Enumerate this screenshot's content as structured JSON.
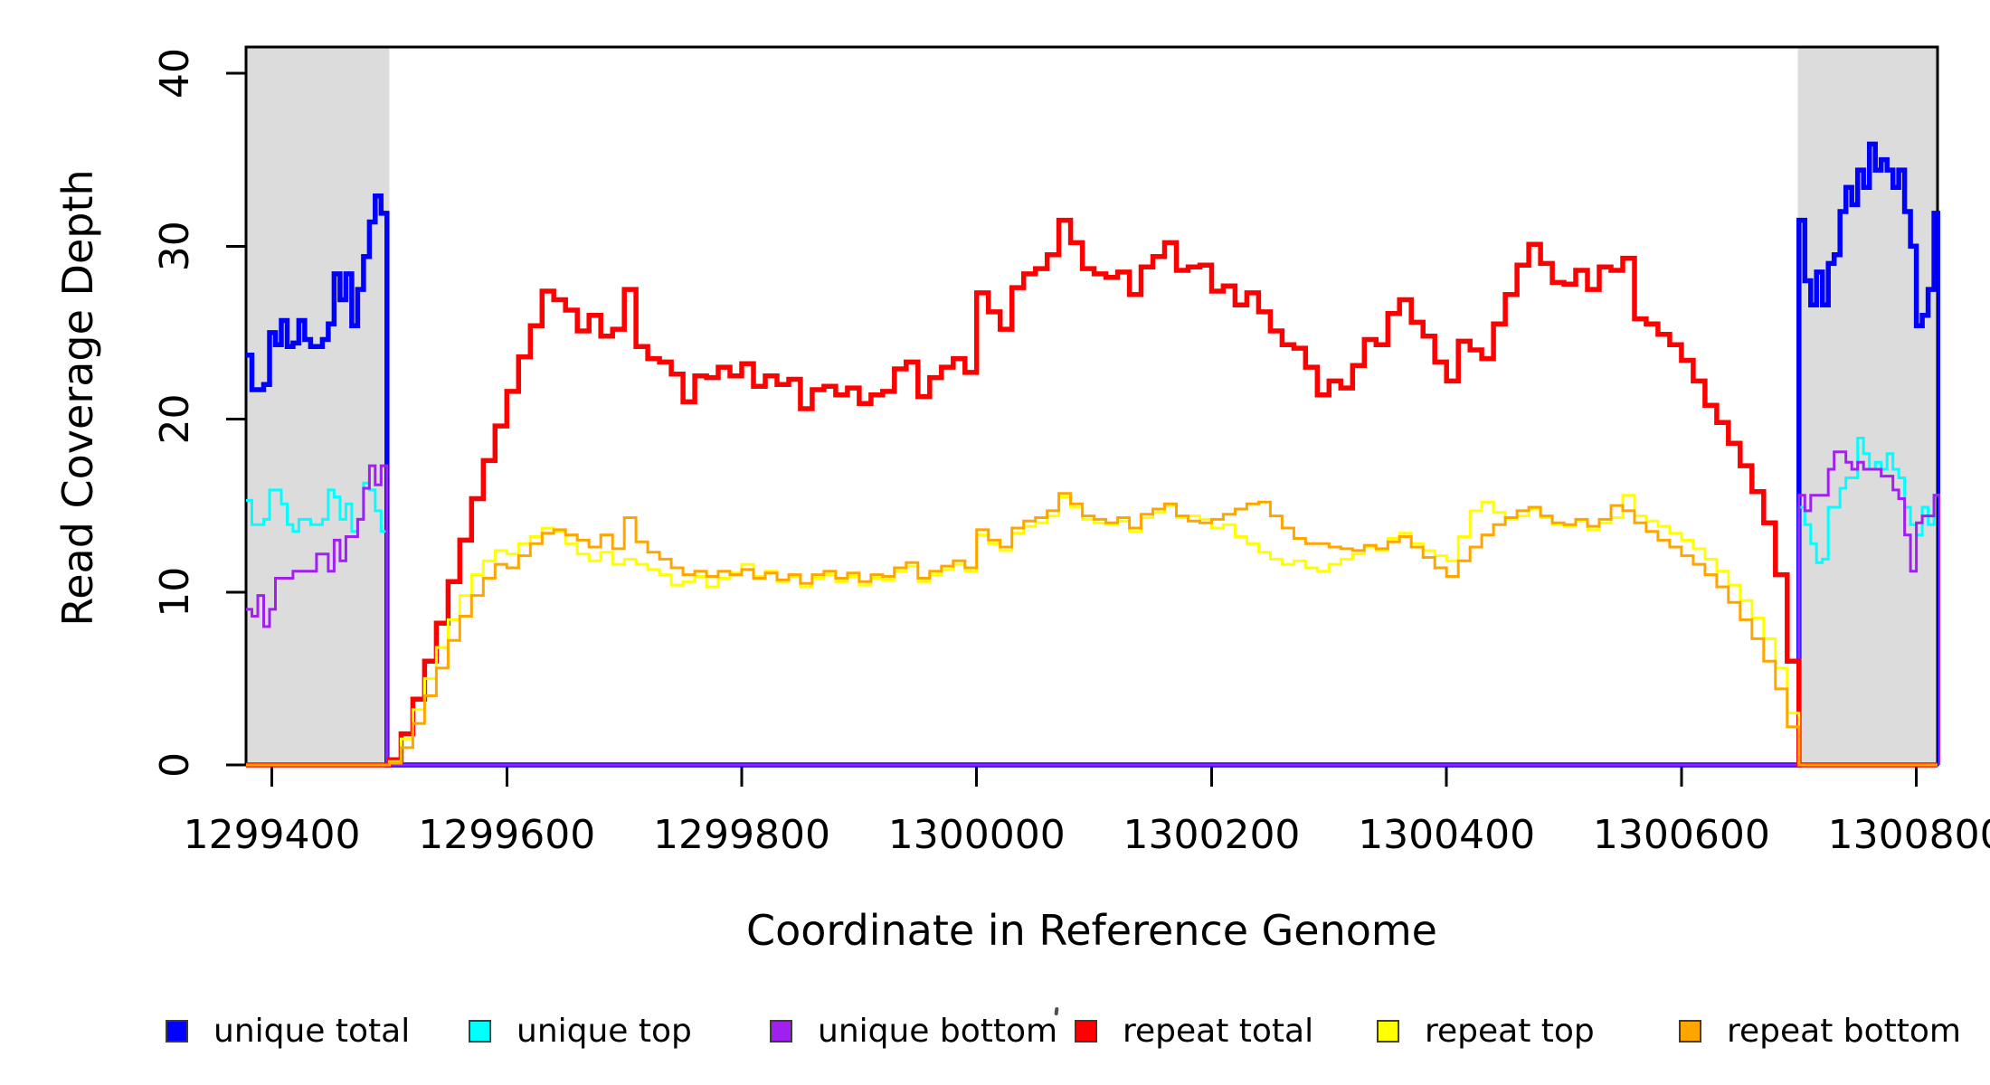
{
  "figure": {
    "background": "#ffffff"
  },
  "chart_data": {
    "type": "line",
    "subtype": "step-coverage",
    "title": "",
    "xlabel": "Coordinate in Reference Genome",
    "ylabel": "Read Coverage Depth",
    "xlim": [
      1299378,
      1300818
    ],
    "ylim": [
      0,
      41.5
    ],
    "x_ticks": [
      1299400,
      1299600,
      1299800,
      1300000,
      1300200,
      1300400,
      1300600,
      1300800
    ],
    "y_ticks": [
      0,
      10,
      20,
      30,
      40
    ],
    "grid": false,
    "legend_position": "bottom-horizontal",
    "shaded_regions": [
      {
        "x_start": 1299378,
        "x_end": 1299500,
        "color": "#DCDCDC"
      },
      {
        "x_start": 1300699,
        "x_end": 1300818,
        "color": "#DCDCDC"
      }
    ],
    "series": [
      {
        "name": "unique total",
        "color": "#0000FF",
        "line_width": 5.5,
        "segments": [
          {
            "x0": 1299378,
            "dx": 5,
            "values": [
              23.7,
              21.7,
              21.7,
              22.0,
              25.0,
              24.3,
              25.7,
              24.2,
              24.4,
              25.7,
              24.6,
              24.2,
              24.2,
              24.6,
              25.5,
              28.4,
              26.9,
              28.4,
              25.4,
              27.5,
              29.4,
              31.4,
              32.9,
              31.9
            ]
          },
          {
            "x0": 1300700,
            "dx": 5,
            "values": [
              31.5,
              28.0,
              26.6,
              28.5,
              26.6,
              29.0,
              29.5,
              32.0,
              33.4,
              32.4,
              34.4,
              33.4,
              35.9,
              34.4,
              35.0,
              34.4,
              33.4,
              34.4,
              32.0,
              30.0,
              25.4,
              26.0,
              27.5,
              31.9
            ]
          }
        ]
      },
      {
        "name": "unique top",
        "color": "#00FFFF",
        "line_width": 3,
        "segments": [
          {
            "x0": 1299378,
            "dx": 5,
            "values": [
              15.3,
              13.9,
              13.9,
              14.2,
              15.9,
              15.9,
              15.1,
              13.9,
              13.5,
              14.2,
              14.2,
              13.9,
              13.9,
              14.2,
              15.9,
              15.5,
              14.2,
              15.1,
              13.5,
              14.2,
              16.3,
              15.9,
              14.7,
              13.5
            ]
          },
          {
            "x0": 1300700,
            "dx": 5,
            "values": [
              14.9,
              13.9,
              12.8,
              11.7,
              11.9,
              14.9,
              14.9,
              16.0,
              16.6,
              16.6,
              18.9,
              18.0,
              17.1,
              17.5,
              17.1,
              18.0,
              17.1,
              16.6,
              14.9,
              13.9,
              13.3,
              14.9,
              13.9,
              15.6
            ]
          }
        ]
      },
      {
        "name": "unique bottom",
        "color": "#A020F0",
        "line_width": 3,
        "segments": [
          {
            "x0": 1299378,
            "dx": 5,
            "values": [
              9.0,
              8.6,
              9.8,
              8.0,
              9.0,
              10.8,
              10.8,
              10.8,
              11.2,
              11.2,
              11.2,
              11.2,
              12.2,
              12.2,
              11.2,
              13.0,
              11.8,
              13.2,
              13.2,
              14.2,
              16.0,
              17.3,
              16.2,
              17.3
            ]
          },
          {
            "x0": 1300700,
            "dx": 5,
            "values": [
              15.6,
              14.7,
              15.6,
              15.6,
              15.6,
              17.1,
              18.1,
              18.1,
              17.5,
              17.1,
              17.5,
              17.1,
              17.1,
              17.1,
              16.7,
              16.7,
              15.9,
              15.4,
              13.3,
              11.2,
              14.0,
              14.4,
              14.4,
              15.6
            ]
          }
        ]
      },
      {
        "name": "repeat total",
        "color": "#FF0000",
        "line_width": 5.5,
        "segments": [
          {
            "x0": 1299500,
            "dx": 10,
            "values": [
              0.3,
              1.8,
              3.8,
              6.0,
              8.2,
              10.6,
              13.0,
              15.4,
              17.6,
              19.6,
              21.6,
              23.6,
              25.4,
              27.4,
              26.9,
              26.3,
              25.1,
              26.0,
              24.8,
              25.2,
              27.5,
              24.2,
              23.5,
              23.3,
              22.6,
              21.0,
              22.5,
              22.4,
              23.0,
              22.5,
              23.2,
              21.9,
              22.5,
              22.0,
              22.3,
              20.6,
              21.7,
              21.9,
              21.4,
              21.8,
              20.9,
              21.4,
              21.6,
              22.9,
              23.3,
              21.3,
              22.4,
              23.0,
              23.5,
              22.7,
              27.3,
              26.2,
              25.2,
              27.6,
              28.4,
              28.7,
              29.5,
              31.5,
              30.2,
              28.7,
              28.4,
              28.2,
              28.5,
              27.2,
              28.8,
              29.4,
              30.2,
              28.6,
              28.8,
              28.9,
              27.4,
              27.7,
              26.6,
              27.3,
              26.2,
              25.1,
              24.3,
              24.1,
              23.0,
              21.4,
              22.2,
              21.8,
              23.1,
              24.6,
              24.3,
              26.1,
              26.9,
              25.6,
              24.8,
              23.3,
              22.2,
              24.5,
              24.0,
              23.5,
              25.5,
              27.2,
              28.9,
              30.1,
              29.0,
              27.9,
              27.8,
              28.6,
              27.5,
              28.8,
              28.6,
              29.3,
              25.8,
              25.5,
              24.9,
              24.3,
              23.4,
              22.2,
              20.8,
              19.8,
              18.6,
              17.3,
              15.8,
              14.0,
              11.0,
              6.0
            ]
          }
        ]
      },
      {
        "name": "repeat top",
        "color": "#FFFF00",
        "line_width": 3,
        "segments": [
          {
            "x0": 1299500,
            "dx": 10,
            "values": [
              0.2,
              1.5,
              3.2,
              5.0,
              6.8,
              8.4,
              9.8,
              11.0,
              11.8,
              12.4,
              12.2,
              12.8,
              13.2,
              13.7,
              13.5,
              12.8,
              12.2,
              11.8,
              12.3,
              11.6,
              11.9,
              11.6,
              11.3,
              11.0,
              10.4,
              10.6,
              10.9,
              10.3,
              10.8,
              11.1,
              11.6,
              10.9,
              11.2,
              10.6,
              10.9,
              10.3,
              10.8,
              11.0,
              10.6,
              10.9,
              10.4,
              10.8,
              10.7,
              11.2,
              11.5,
              10.6,
              11.0,
              11.3,
              11.6,
              11.2,
              13.3,
              12.8,
              12.4,
              13.4,
              13.8,
              14.0,
              14.4,
              15.5,
              14.9,
              14.2,
              14.0,
              13.9,
              14.1,
              13.5,
              14.3,
              14.6,
              15.0,
              14.3,
              14.4,
              14.2,
              13.7,
              13.9,
              13.2,
              12.8,
              12.3,
              11.9,
              11.6,
              11.8,
              11.4,
              11.2,
              11.6,
              11.9,
              12.2,
              12.6,
              12.4,
              13.1,
              13.4,
              12.8,
              12.4,
              12.1,
              11.8,
              13.2,
              14.7,
              15.2,
              14.6,
              14.2,
              14.4,
              14.8,
              14.3,
              13.9,
              13.8,
              14.1,
              13.6,
              14.0,
              14.3,
              15.6,
              14.4,
              14.1,
              13.8,
              13.4,
              13.0,
              12.5,
              11.9,
              11.2,
              10.4,
              9.5,
              8.5,
              7.3,
              5.6,
              3.0
            ]
          }
        ]
      },
      {
        "name": "repeat bottom",
        "color": "#FFA500",
        "line_width": 3,
        "segments": [
          {
            "x0": 1299500,
            "dx": 10,
            "values": [
              0.1,
              1.0,
              2.4,
              4.0,
              5.6,
              7.2,
              8.6,
              9.8,
              10.8,
              11.6,
              11.4,
              12.1,
              12.8,
              13.4,
              13.6,
              13.3,
              13.0,
              12.6,
              13.3,
              12.5,
              14.3,
              12.9,
              12.3,
              11.9,
              11.4,
              11.0,
              11.2,
              10.9,
              11.2,
              11.0,
              11.3,
              10.8,
              11.1,
              10.7,
              11.0,
              10.5,
              11.0,
              11.2,
              10.8,
              11.1,
              10.6,
              11.0,
              10.9,
              11.4,
              11.7,
              10.8,
              11.2,
              11.5,
              11.8,
              11.4,
              13.6,
              13.0,
              12.6,
              13.7,
              14.1,
              14.3,
              14.7,
              15.7,
              15.1,
              14.4,
              14.2,
              14.0,
              14.3,
              13.7,
              14.5,
              14.8,
              15.1,
              14.4,
              14.1,
              14.0,
              14.2,
              14.5,
              14.8,
              15.1,
              15.2,
              14.4,
              13.7,
              13.1,
              12.8,
              12.8,
              12.6,
              12.5,
              12.4,
              12.7,
              12.5,
              12.9,
              13.2,
              12.6,
              12.0,
              11.4,
              10.9,
              11.8,
              12.6,
              13.3,
              13.9,
              14.3,
              14.7,
              14.9,
              14.4,
              14.0,
              13.9,
              14.2,
              13.8,
              14.2,
              15.0,
              14.7,
              14.0,
              13.5,
              13.0,
              12.6,
              12.1,
              11.6,
              11.0,
              10.3,
              9.4,
              8.4,
              7.3,
              6.0,
              4.4,
              2.2
            ]
          }
        ]
      }
    ]
  },
  "legend": {
    "items": [
      {
        "label": "unique total",
        "color": "#0000FF"
      },
      {
        "label": "unique top",
        "color": "#00FFFF"
      },
      {
        "label": "unique bottom",
        "color": "#A020F0"
      },
      {
        "label": "repeat total",
        "color": "#FF0000"
      },
      {
        "label": "repeat top",
        "color": "#FFFF00"
      },
      {
        "label": "repeat bottom",
        "color": "#FFA500"
      }
    ]
  },
  "annotations": {
    "stray_mark": "small dark speck between legend entries"
  }
}
